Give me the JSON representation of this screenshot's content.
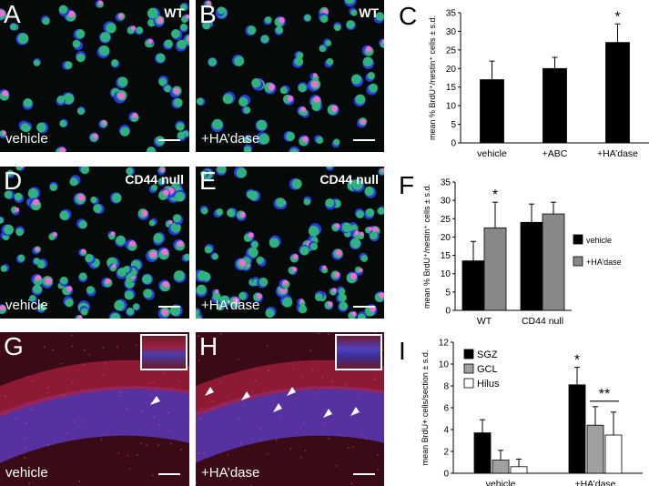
{
  "panels": {
    "A": {
      "letter": "A",
      "genotype": "WT",
      "condition": "vehicle"
    },
    "B": {
      "letter": "B",
      "genotype": "WT",
      "condition": "+HA’dase"
    },
    "D": {
      "letter": "D",
      "genotype": "CD44 null",
      "condition": "vehicle"
    },
    "E": {
      "letter": "E",
      "genotype": "CD44 null",
      "condition": "+HA’dase"
    },
    "G": {
      "letter": "G",
      "condition": "vehicle"
    },
    "H": {
      "letter": "H",
      "condition": "+HA’dase"
    }
  },
  "chart_data": [
    {
      "id": "C",
      "letter": "C",
      "type": "bar",
      "ylabel": "mean % BrdU⁺/nestin⁺ cells ± s.d.",
      "ylim": [
        0,
        35
      ],
      "yticks": [
        0,
        5,
        10,
        15,
        20,
        25,
        30,
        35
      ],
      "categories": [
        "vehicle",
        "+ABC",
        "+HA’dase"
      ],
      "series": [
        {
          "values": [
            17,
            20,
            27
          ],
          "errors": [
            5,
            3,
            5
          ],
          "color": "#000000"
        }
      ],
      "significance": [
        {
          "category": 2,
          "mark": "*"
        }
      ]
    },
    {
      "id": "F",
      "letter": "F",
      "type": "bar",
      "ylabel": "mean % BrdU⁺/nestin⁺ cells ± s.d.",
      "ylim": [
        0,
        35
      ],
      "yticks": [
        0,
        5,
        10,
        15,
        20,
        25,
        30,
        35
      ],
      "categories": [
        "WT",
        "CD44 null"
      ],
      "series": [
        {
          "name": "vehicle",
          "values": [
            13.5,
            24
          ],
          "errors": [
            5.3,
            5
          ],
          "color": "#000000"
        },
        {
          "name": "+HA’dase",
          "values": [
            22.5,
            26.3
          ],
          "errors": [
            7,
            3.2
          ],
          "color": "#888888"
        }
      ],
      "significance": [
        {
          "category": 0,
          "series": 1,
          "mark": "*"
        }
      ],
      "legend_position": "right"
    },
    {
      "id": "I",
      "letter": "I",
      "type": "bar",
      "ylabel": "mean BrdU+ cells/section ± s.d.",
      "ylim": [
        0,
        12
      ],
      "yticks": [
        0,
        2,
        4,
        6,
        8,
        10,
        12
      ],
      "categories": [
        "vehicle",
        "+HA’dase"
      ],
      "series": [
        {
          "name": "SGZ",
          "values": [
            3.7,
            8.1
          ],
          "errors": [
            1.2,
            1.6
          ],
          "color": "#000000"
        },
        {
          "name": "GCL",
          "values": [
            1.2,
            4.4
          ],
          "errors": [
            0.9,
            1.7
          ],
          "color": "#a0a0a0"
        },
        {
          "name": "Hilus",
          "values": [
            0.6,
            3.5
          ],
          "errors": [
            0.7,
            2.1
          ],
          "color": "#ffffff"
        }
      ],
      "significance": [
        {
          "category": 1,
          "series": 0,
          "mark": "*"
        },
        {
          "category": 1,
          "series_span": [
            1,
            2
          ],
          "mark": "**"
        }
      ],
      "legend_position": "top-left"
    }
  ]
}
